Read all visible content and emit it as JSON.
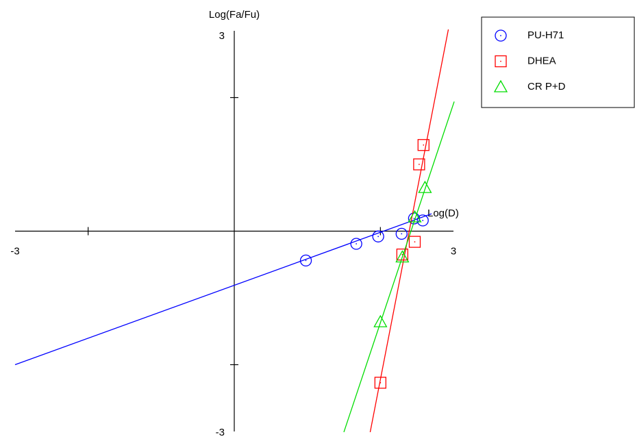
{
  "chart_data": {
    "type": "scatter",
    "x_label": "Log(D)",
    "y_label": "Log(Fa/Fu)",
    "xlim": [
      -3,
      3
    ],
    "ylim": [
      -3,
      3
    ],
    "xticks": [
      -2,
      2
    ],
    "yticks": [
      -2,
      2
    ],
    "legend": "upper right",
    "series": [
      {
        "name": "PU-H71",
        "color": "#0000ff",
        "marker": "circle",
        "x": [
          0.98,
          1.67,
          1.97,
          2.29,
          2.46,
          2.58
        ],
        "values": [
          -0.44,
          -0.19,
          -0.08,
          -0.04,
          0.19,
          0.16
        ],
        "fit": {
          "x": [
            -3,
            2.7
          ],
          "y": [
            -2.0,
            0.26
          ]
        }
      },
      {
        "name": "DHEA",
        "color": "#ff0000",
        "marker": "square",
        "x": [
          2.0,
          2.3,
          2.47,
          2.53,
          2.59
        ],
        "values": [
          -2.27,
          -0.35,
          -0.16,
          1.0,
          1.29
        ],
        "fit": {
          "x": [
            1.86,
            2.93
          ],
          "y": [
            -3.01,
            3.02
          ]
        }
      },
      {
        "name": "CR P+D",
        "color": "#00dd00",
        "marker": "triangle",
        "x": [
          2.0,
          2.3,
          2.47,
          2.61
        ],
        "values": [
          -1.36,
          -0.39,
          0.21,
          0.65
        ],
        "fit": {
          "x": [
            1.5,
            3.01
          ],
          "y": [
            -3.01,
            1.94
          ]
        }
      }
    ]
  }
}
